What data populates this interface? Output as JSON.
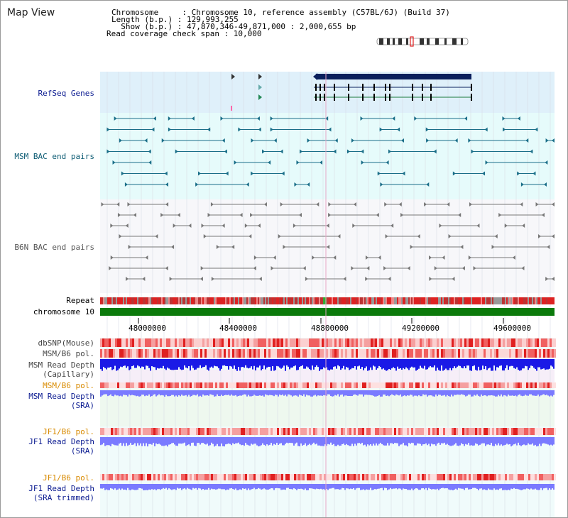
{
  "header": {
    "title": "Map View",
    "chromosome_line": "Chromosome     : Chromosome 10, reference assembly (C57BL/6J) (Build 37)",
    "length_line": "Length (b.p.) : 129,993,255",
    "show_line": "  Show (b.p.) : 47,870,346-49,871,000 : 2,000,655 bp",
    "coverage_line": "Read coverage check span : 10,000"
  },
  "tracks": {
    "refseq": "RefSeq Genes",
    "msm_bac": "MSM BAC end pairs",
    "b6n_bac": "B6N BAC end pairs",
    "repeat": "Repeat",
    "chromosome": "chromosome 10",
    "dbsnp": "dbSNP(Mouse)",
    "msm_b6_pol_1": "MSM/B6 pol.",
    "msm_depth_cap_1": "MSM Read Depth",
    "msm_depth_cap_2": "(Capillary)",
    "msm_b6_pol_2": "MSM/B6 pol.",
    "msm_depth_sra_1": "MSM Read Depth",
    "msm_depth_sra_2": "(SRA)",
    "jf1_b6_pol_1": "JF1/B6 pol.",
    "jf1_depth_sra_1": "JF1 Read Depth",
    "jf1_depth_sra_2": "(SRA)",
    "jf1_b6_pol_2": "JF1/B6 pol.",
    "jf1_depth_trim_1": "JF1 Read Depth",
    "jf1_depth_trim_2": "(SRA trimmed)"
  },
  "axis": {
    "ticks": [
      "48000000",
      "48400000",
      "48800000",
      "49200000",
      "49600000"
    ],
    "range": [
      47870346,
      49871000
    ]
  },
  "colors": {
    "refseq_bg": "#dff0fa",
    "msm_bg": "#e6fbfb",
    "b6n_bg": "#f7f7fa",
    "chromosome": "#0b7a0b",
    "repeat": "#dd2222",
    "snp": "#f04040",
    "depth_capillary": "#1a1ae6",
    "depth_sra": "#7a7aff",
    "gene": "#0a1f5c",
    "msm_pair": "#1a6e88",
    "b6n_pair": "#777777"
  }
}
